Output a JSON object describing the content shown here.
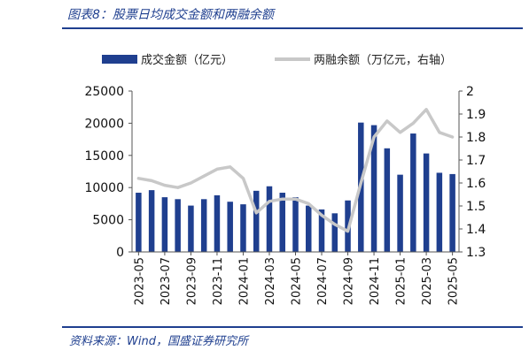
{
  "header": {
    "title": "图表8：股票日均成交金额和两融余额"
  },
  "footer": {
    "source": "资料来源：Wind，国盛证券研究所"
  },
  "chart_data": {
    "type": "bar+line",
    "categories": [
      "2023-05",
      "2023-06",
      "2023-07",
      "2023-08",
      "2023-09",
      "2023-10",
      "2023-11",
      "2023-12",
      "2024-01",
      "2024-02",
      "2024-03",
      "2024-04",
      "2024-05",
      "2024-06",
      "2024-07",
      "2024-08",
      "2024-09",
      "2024-10",
      "2024-11",
      "2024-12",
      "2025-01",
      "2025-02",
      "2025-03",
      "2025-04",
      "2025-05"
    ],
    "tick_labels": [
      "2023-05",
      "2023-07",
      "2023-09",
      "2023-11",
      "2024-01",
      "2024-03",
      "2024-05",
      "2024-07",
      "2024-09",
      "2024-11",
      "2025-01",
      "2025-03",
      "2025-05"
    ],
    "series": [
      {
        "name": "成交金额（亿元）",
        "type": "bar",
        "axis": "left",
        "color": "#1f3f8f",
        "values": [
          9200,
          9600,
          8500,
          8200,
          7200,
          8200,
          8800,
          7800,
          7400,
          9500,
          10200,
          9200,
          8500,
          7200,
          6600,
          6000,
          8000,
          20100,
          19700,
          16100,
          12000,
          18400,
          15300,
          12300,
          12100
        ]
      },
      {
        "name": "两融余额（万亿元，右轴）",
        "type": "line",
        "axis": "right",
        "color": "#c8c8c8",
        "values": [
          1.62,
          1.61,
          1.59,
          1.58,
          1.6,
          1.63,
          1.66,
          1.67,
          1.62,
          1.47,
          1.52,
          1.53,
          1.53,
          1.51,
          1.46,
          1.42,
          1.39,
          1.6,
          1.8,
          1.87,
          1.82,
          1.86,
          1.92,
          1.82,
          1.8
        ]
      }
    ],
    "y_left": {
      "min": 0,
      "max": 25000,
      "ticks": [
        0,
        5000,
        10000,
        15000,
        20000,
        25000
      ]
    },
    "y_right": {
      "min": 1.3,
      "max": 2.0,
      "ticks": [
        "1.3",
        "1.4",
        "1.5",
        "1.6",
        "1.7",
        "1.8",
        "1.9",
        "2"
      ]
    },
    "legend_position": "top",
    "grid": false
  }
}
